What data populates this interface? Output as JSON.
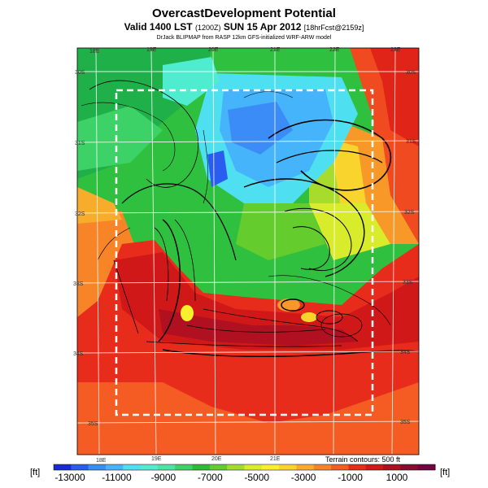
{
  "header": {
    "title": "OvercastDevelopment Potential",
    "valid_main": "Valid 1400 LST",
    "valid_utc": "(1200Z)",
    "valid_date": "SUN 15 Apr 2012",
    "forecast": "[18hrFcst@2159z]",
    "source": "DrJack BLIPMAP from RASP 12km GFS-initialized WRF-ARW model"
  },
  "map": {
    "lon_labels_top": [
      "18E",
      "19E",
      "20E",
      "21E",
      "22E",
      "23E"
    ],
    "lon_labels_bottom": [
      "18E",
      "19E",
      "20E",
      "21E"
    ],
    "lat_labels_left": [
      "30S",
      "31S",
      "32S",
      "33S",
      "34S",
      "35S"
    ],
    "lat_labels_right": [
      "30S",
      "31S",
      "32S",
      "33S",
      "34S",
      "35S"
    ],
    "terrain_note": "Terrain contours: 500 ft"
  },
  "colorbar": {
    "unit_left": "[ft]",
    "unit_right": "[ft]",
    "tick_labels": [
      "-13000",
      "-11000",
      "-9000",
      "-7000",
      "-5000",
      "-3000",
      "-1000",
      "1000"
    ],
    "colors": [
      "#1a2ad8",
      "#2a5cf0",
      "#3c8cf8",
      "#45b4fa",
      "#4ee0f0",
      "#50ecd0",
      "#4ce4a4",
      "#3cd268",
      "#2cbc38",
      "#64cc2c",
      "#a4dc2c",
      "#d8ec2c",
      "#f8f02c",
      "#f8d42c",
      "#f8ac2c",
      "#f88428",
      "#f45c24",
      "#e82c1c",
      "#d01818",
      "#b01020",
      "#8c0c30",
      "#700840"
    ]
  }
}
